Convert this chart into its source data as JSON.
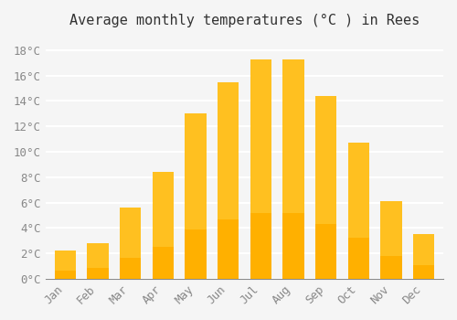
{
  "title": "Average monthly temperatures (°C ) in Rees",
  "months": [
    "Jan",
    "Feb",
    "Mar",
    "Apr",
    "May",
    "Jun",
    "Jul",
    "Aug",
    "Sep",
    "Oct",
    "Nov",
    "Dec"
  ],
  "values": [
    2.2,
    2.8,
    5.6,
    8.4,
    13.0,
    15.5,
    17.3,
    17.3,
    14.4,
    10.7,
    6.1,
    3.5
  ],
  "bar_color_top": "#FFC020",
  "bar_color_bottom": "#FFB000",
  "background_color": "#F5F5F5",
  "grid_color": "#FFFFFF",
  "ytick_labels": [
    "0°C",
    "2°C",
    "4°C",
    "6°C",
    "8°C",
    "10°C",
    "12°C",
    "14°C",
    "16°C",
    "18°C"
  ],
  "ytick_values": [
    0,
    2,
    4,
    6,
    8,
    10,
    12,
    14,
    16,
    18
  ],
  "ylim": [
    0,
    19
  ],
  "title_fontsize": 11,
  "tick_fontsize": 9,
  "font_family": "monospace"
}
